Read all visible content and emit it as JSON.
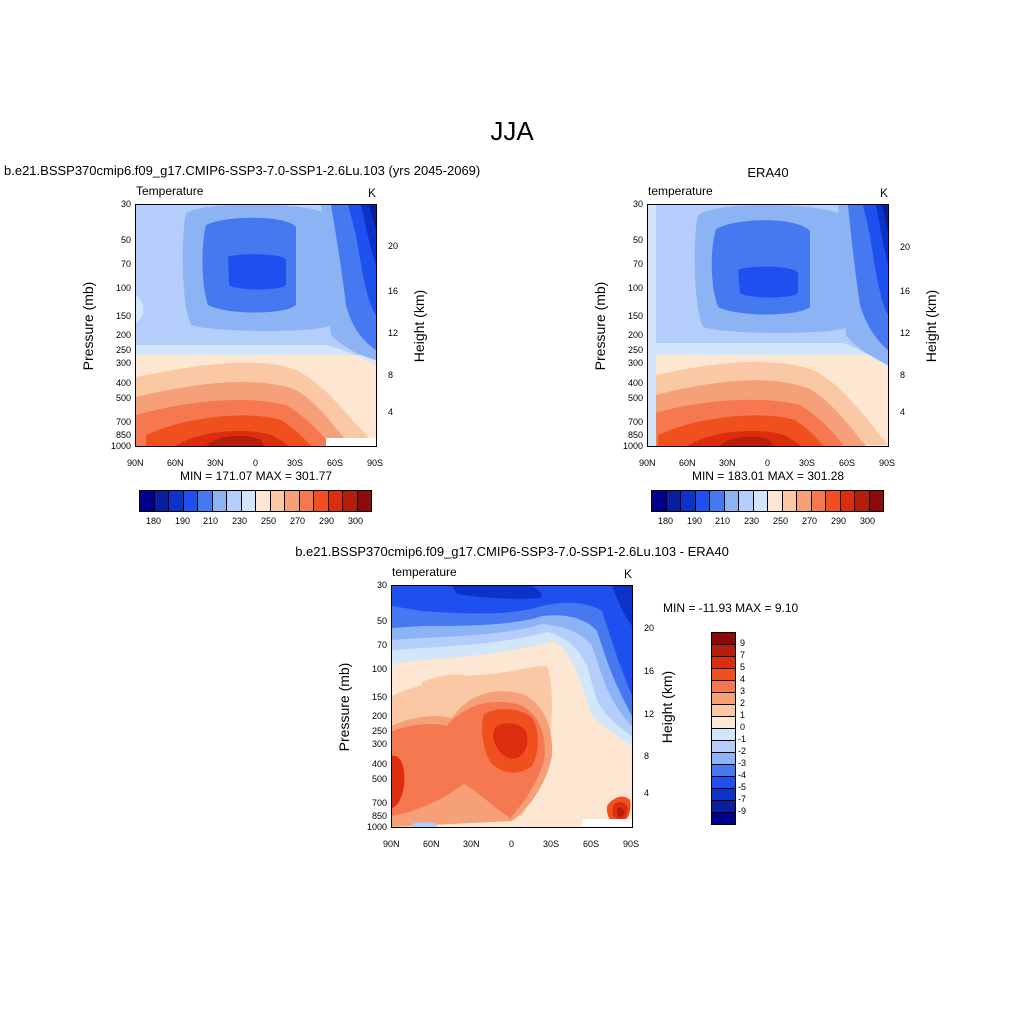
{
  "page": {
    "title": "JJA"
  },
  "chart_data": [
    {
      "type": "heatmap",
      "title": "b.e21.BSSP370cmip6.f09_g17.CMIP6-SSP3-7.0-SSP1-2.6Lu.103 (yrs 2045-2069)",
      "left_label": "Temperature",
      "units": "K",
      "ylabel": "Pressure (mb)",
      "y2label": "Height (km)",
      "x_ticks": [
        "90N",
        "60N",
        "30N",
        "0",
        "30S",
        "60S",
        "90S"
      ],
      "y_ticks": [
        "30",
        "50",
        "70",
        "100",
        "150",
        "200",
        "250",
        "300",
        "400",
        "500",
        "700",
        "850",
        "1000"
      ],
      "y2_ticks": [
        "20",
        "16",
        "12",
        "8",
        "4"
      ],
      "stats": "MIN = 171.07   MAX = 301.77",
      "colorbar_labels": [
        "180",
        "190",
        "210",
        "230",
        "250",
        "270",
        "290",
        "300"
      ]
    },
    {
      "type": "heatmap",
      "title": "ERA40",
      "left_label": "temperature",
      "units": "K",
      "ylabel": "Pressure (mb)",
      "y2label": "Height (km)",
      "x_ticks": [
        "90N",
        "60N",
        "30N",
        "0",
        "30S",
        "60S",
        "90S"
      ],
      "y_ticks": [
        "30",
        "50",
        "70",
        "100",
        "150",
        "200",
        "250",
        "300",
        "400",
        "500",
        "700",
        "850",
        "1000"
      ],
      "y2_ticks": [
        "20",
        "16",
        "12",
        "8",
        "4"
      ],
      "stats": "MIN = 183.01   MAX = 301.28",
      "colorbar_labels": [
        "180",
        "190",
        "210",
        "230",
        "250",
        "270",
        "290",
        "300"
      ]
    },
    {
      "type": "heatmap",
      "title": "b.e21.BSSP370cmip6.f09_g17.CMIP6-SSP3-7.0-SSP1-2.6Lu.103 - ERA40",
      "left_label": "temperature",
      "units": "K",
      "ylabel": "Pressure (mb)",
      "y2label": "Height (km)",
      "x_ticks": [
        "90N",
        "60N",
        "30N",
        "0",
        "30S",
        "60S",
        "90S"
      ],
      "y_ticks": [
        "30",
        "50",
        "70",
        "100",
        "150",
        "200",
        "250",
        "300",
        "400",
        "500",
        "700",
        "850",
        "1000"
      ],
      "y2_ticks": [
        "20",
        "16",
        "12",
        "8",
        "4"
      ],
      "stats": "MIN = -11.93   MAX =   9.10",
      "colorbar_labels": [
        "9",
        "7",
        "5",
        "4",
        "3",
        "2",
        "1",
        "0",
        "-1",
        "-2",
        "-3",
        "-4",
        "-5",
        "-7",
        "-9"
      ]
    }
  ],
  "colors": {
    "abs_scale": [
      "#00008c",
      "#0a1ea0",
      "#0d32c8",
      "#1e50f0",
      "#4678f0",
      "#8cb4f5",
      "#b4cdfa",
      "#d2e6fa",
      "#fde6d2",
      "#fac8a5",
      "#f5a078",
      "#f57850",
      "#f0501e",
      "#dc2d0f",
      "#b41e0a",
      "#8c0a0a"
    ],
    "diff_scale": [
      "#8c0a0a",
      "#b41e0a",
      "#dc2d0f",
      "#f0501e",
      "#f57850",
      "#f5a078",
      "#fac8a5",
      "#fde6d2",
      "#d2e6fa",
      "#b4cdfa",
      "#8cb4f5",
      "#4678f0",
      "#1e50f0",
      "#0d32c8",
      "#0a1ea0",
      "#00008c"
    ]
  }
}
